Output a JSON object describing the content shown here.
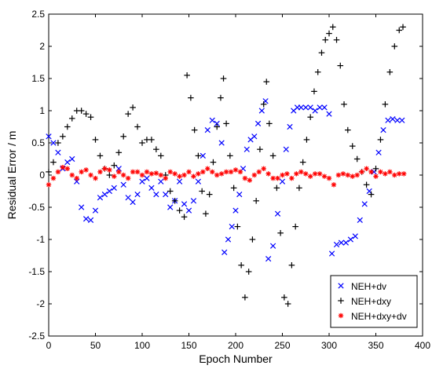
{
  "chart_data": {
    "type": "scatter",
    "title": "",
    "xlabel": "Epoch Number",
    "ylabel": "Residual Error / m",
    "xlim": [
      0,
      400
    ],
    "ylim": [
      -2.5,
      2.5
    ],
    "xticks": [
      0,
      50,
      100,
      150,
      200,
      250,
      300,
      350,
      400
    ],
    "yticks": [
      -2.5,
      -2,
      -1.5,
      -1,
      -0.5,
      0,
      0.5,
      1,
      1.5,
      2,
      2.5
    ],
    "xtick_labels": [
      "0",
      "50",
      "100",
      "150",
      "200",
      "250",
      "300",
      "350",
      "400"
    ],
    "ytick_labels": [
      "-2.5",
      "-2",
      "-1.5",
      "-1",
      "-0.5",
      "0",
      "0.5",
      "1",
      "1.5",
      "2",
      "2.5"
    ],
    "grid": false,
    "legend_position": "bottom-right",
    "series": [
      {
        "name": "NEH+dv",
        "marker": "x",
        "color": "#0000ff",
        "points": [
          [
            0,
            0.6
          ],
          [
            5,
            0.5
          ],
          [
            10,
            0.35
          ],
          [
            15,
            0.1
          ],
          [
            20,
            0.2
          ],
          [
            25,
            0.25
          ],
          [
            30,
            -0.1
          ],
          [
            35,
            -0.5
          ],
          [
            40,
            -0.68
          ],
          [
            45,
            -0.7
          ],
          [
            50,
            -0.55
          ],
          [
            55,
            -0.35
          ],
          [
            60,
            -0.3
          ],
          [
            65,
            -0.25
          ],
          [
            70,
            -0.2
          ],
          [
            75,
            0.1
          ],
          [
            80,
            -0.15
          ],
          [
            85,
            -0.35
          ],
          [
            90,
            -0.42
          ],
          [
            95,
            -0.3
          ],
          [
            100,
            -0.1
          ],
          [
            105,
            -0.05
          ],
          [
            110,
            -0.2
          ],
          [
            115,
            -0.3
          ],
          [
            120,
            -0.1
          ],
          [
            125,
            -0.3
          ],
          [
            130,
            -0.5
          ],
          [
            135,
            -0.4
          ],
          [
            140,
            -0.1
          ],
          [
            145,
            -0.45
          ],
          [
            150,
            -0.55
          ],
          [
            155,
            -0.4
          ],
          [
            160,
            -0.1
          ],
          [
            165,
            0.3
          ],
          [
            170,
            0.7
          ],
          [
            175,
            0.85
          ],
          [
            180,
            0.8
          ],
          [
            185,
            0.5
          ],
          [
            188,
            -1.2
          ],
          [
            192,
            -1.0
          ],
          [
            196,
            -0.8
          ],
          [
            200,
            -0.55
          ],
          [
            204,
            -0.3
          ],
          [
            208,
            0.1
          ],
          [
            212,
            0.4
          ],
          [
            216,
            0.55
          ],
          [
            220,
            0.6
          ],
          [
            224,
            0.8
          ],
          [
            228,
            1.0
          ],
          [
            232,
            1.15
          ],
          [
            235,
            -1.3
          ],
          [
            240,
            -1.1
          ],
          [
            245,
            -0.6
          ],
          [
            250,
            -0.1
          ],
          [
            254,
            0.4
          ],
          [
            258,
            0.75
          ],
          [
            262,
            1.0
          ],
          [
            266,
            1.05
          ],
          [
            270,
            1.05
          ],
          [
            275,
            1.05
          ],
          [
            280,
            1.05
          ],
          [
            285,
            1.0
          ],
          [
            290,
            1.05
          ],
          [
            295,
            1.05
          ],
          [
            300,
            0.95
          ],
          [
            303,
            -1.22
          ],
          [
            308,
            -1.08
          ],
          [
            313,
            -1.05
          ],
          [
            318,
            -1.05
          ],
          [
            323,
            -1.0
          ],
          [
            328,
            -0.95
          ],
          [
            333,
            -0.7
          ],
          [
            338,
            -0.45
          ],
          [
            343,
            -0.25
          ],
          [
            348,
            0.05
          ],
          [
            353,
            0.35
          ],
          [
            358,
            0.7
          ],
          [
            363,
            0.85
          ],
          [
            368,
            0.87
          ],
          [
            373,
            0.85
          ],
          [
            378,
            0.85
          ]
        ]
      },
      {
        "name": "NEH+dxy",
        "marker": "+",
        "color": "#000000",
        "points": [
          [
            0,
            0.05
          ],
          [
            5,
            0.2
          ],
          [
            10,
            0.5
          ],
          [
            15,
            0.6
          ],
          [
            20,
            0.75
          ],
          [
            25,
            0.88
          ],
          [
            30,
            1.0
          ],
          [
            35,
            1.0
          ],
          [
            40,
            0.95
          ],
          [
            45,
            0.9
          ],
          [
            50,
            0.55
          ],
          [
            55,
            0.3
          ],
          [
            60,
            0.1
          ],
          [
            65,
            0.0
          ],
          [
            70,
            0.15
          ],
          [
            75,
            0.35
          ],
          [
            80,
            0.6
          ],
          [
            85,
            0.95
          ],
          [
            90,
            1.05
          ],
          [
            95,
            0.75
          ],
          [
            100,
            0.5
          ],
          [
            105,
            0.55
          ],
          [
            110,
            0.55
          ],
          [
            115,
            0.4
          ],
          [
            120,
            0.3
          ],
          [
            125,
            0.0
          ],
          [
            130,
            -0.25
          ],
          [
            135,
            -0.4
          ],
          [
            140,
            -0.55
          ],
          [
            145,
            -0.65
          ],
          [
            148,
            1.55
          ],
          [
            152,
            1.2
          ],
          [
            156,
            0.7
          ],
          [
            160,
            0.3
          ],
          [
            164,
            -0.25
          ],
          [
            168,
            -0.6
          ],
          [
            172,
            -0.3
          ],
          [
            176,
            0.2
          ],
          [
            180,
            0.75
          ],
          [
            184,
            1.2
          ],
          [
            187,
            1.5
          ],
          [
            190,
            0.8
          ],
          [
            194,
            0.3
          ],
          [
            198,
            -0.2
          ],
          [
            202,
            -0.8
          ],
          [
            206,
            -1.4
          ],
          [
            210,
            -1.9
          ],
          [
            214,
            -1.5
          ],
          [
            218,
            -1.0
          ],
          [
            222,
            -0.4
          ],
          [
            226,
            0.4
          ],
          [
            230,
            1.1
          ],
          [
            233,
            1.45
          ],
          [
            236,
            0.8
          ],
          [
            240,
            0.3
          ],
          [
            244,
            -0.2
          ],
          [
            248,
            -0.9
          ],
          [
            252,
            -1.9
          ],
          [
            256,
            -2.0
          ],
          [
            260,
            -1.4
          ],
          [
            264,
            -0.8
          ],
          [
            268,
            -0.2
          ],
          [
            272,
            0.2
          ],
          [
            276,
            0.55
          ],
          [
            280,
            0.9
          ],
          [
            284,
            1.3
          ],
          [
            288,
            1.6
          ],
          [
            292,
            1.9
          ],
          [
            296,
            2.1
          ],
          [
            300,
            2.2
          ],
          [
            304,
            2.3
          ],
          [
            308,
            2.1
          ],
          [
            312,
            1.7
          ],
          [
            316,
            1.1
          ],
          [
            320,
            0.7
          ],
          [
            325,
            0.45
          ],
          [
            330,
            0.25
          ],
          [
            335,
            0.05
          ],
          [
            340,
            -0.15
          ],
          [
            345,
            -0.3
          ],
          [
            350,
            0.1
          ],
          [
            355,
            0.55
          ],
          [
            360,
            1.1
          ],
          [
            365,
            1.6
          ],
          [
            370,
            2.0
          ],
          [
            375,
            2.25
          ],
          [
            379,
            2.3
          ]
        ]
      },
      {
        "name": "NEH+dxy+dv",
        "marker": "*",
        "color": "#ff0000",
        "points": [
          [
            0,
            -0.15
          ],
          [
            5,
            -0.05
          ],
          [
            10,
            0.05
          ],
          [
            15,
            0.12
          ],
          [
            20,
            0.1
          ],
          [
            25,
            0.0
          ],
          [
            30,
            -0.05
          ],
          [
            35,
            0.05
          ],
          [
            40,
            0.08
          ],
          [
            45,
            0.0
          ],
          [
            50,
            -0.05
          ],
          [
            55,
            0.05
          ],
          [
            60,
            0.1
          ],
          [
            65,
            0.08
          ],
          [
            70,
            -0.02
          ],
          [
            75,
            0.05
          ],
          [
            80,
            0.0
          ],
          [
            85,
            -0.05
          ],
          [
            90,
            0.05
          ],
          [
            95,
            0.05
          ],
          [
            100,
            0.0
          ],
          [
            105,
            0.05
          ],
          [
            110,
            0.02
          ],
          [
            115,
            0.03
          ],
          [
            120,
            0.0
          ],
          [
            125,
            -0.05
          ],
          [
            130,
            0.05
          ],
          [
            135,
            0.02
          ],
          [
            140,
            -0.02
          ],
          [
            145,
            0.0
          ],
          [
            150,
            0.05
          ],
          [
            155,
            -0.02
          ],
          [
            160,
            0.02
          ],
          [
            165,
            0.05
          ],
          [
            170,
            0.1
          ],
          [
            175,
            0.05
          ],
          [
            180,
            0.0
          ],
          [
            185,
            0.02
          ],
          [
            190,
            0.05
          ],
          [
            195,
            0.05
          ],
          [
            200,
            0.08
          ],
          [
            205,
            0.05
          ],
          [
            210,
            -0.05
          ],
          [
            215,
            -0.08
          ],
          [
            220,
            0.0
          ],
          [
            225,
            0.05
          ],
          [
            230,
            0.1
          ],
          [
            235,
            0.02
          ],
          [
            240,
            -0.05
          ],
          [
            245,
            -0.05
          ],
          [
            250,
            0.0
          ],
          [
            255,
            0.02
          ],
          [
            260,
            -0.05
          ],
          [
            265,
            0.02
          ],
          [
            270,
            0.05
          ],
          [
            275,
            0.02
          ],
          [
            280,
            -0.02
          ],
          [
            285,
            0.02
          ],
          [
            290,
            0.02
          ],
          [
            295,
            -0.02
          ],
          [
            300,
            -0.05
          ],
          [
            305,
            -0.15
          ],
          [
            310,
            0.0
          ],
          [
            315,
            0.02
          ],
          [
            320,
            0.0
          ],
          [
            325,
            -0.02
          ],
          [
            330,
            0.0
          ],
          [
            335,
            0.05
          ],
          [
            340,
            0.1
          ],
          [
            345,
            0.05
          ],
          [
            350,
            -0.02
          ],
          [
            355,
            0.05
          ],
          [
            360,
            0.02
          ],
          [
            365,
            0.05
          ],
          [
            370,
            0.0
          ],
          [
            375,
            0.02
          ],
          [
            380,
            0.02
          ]
        ]
      }
    ]
  }
}
